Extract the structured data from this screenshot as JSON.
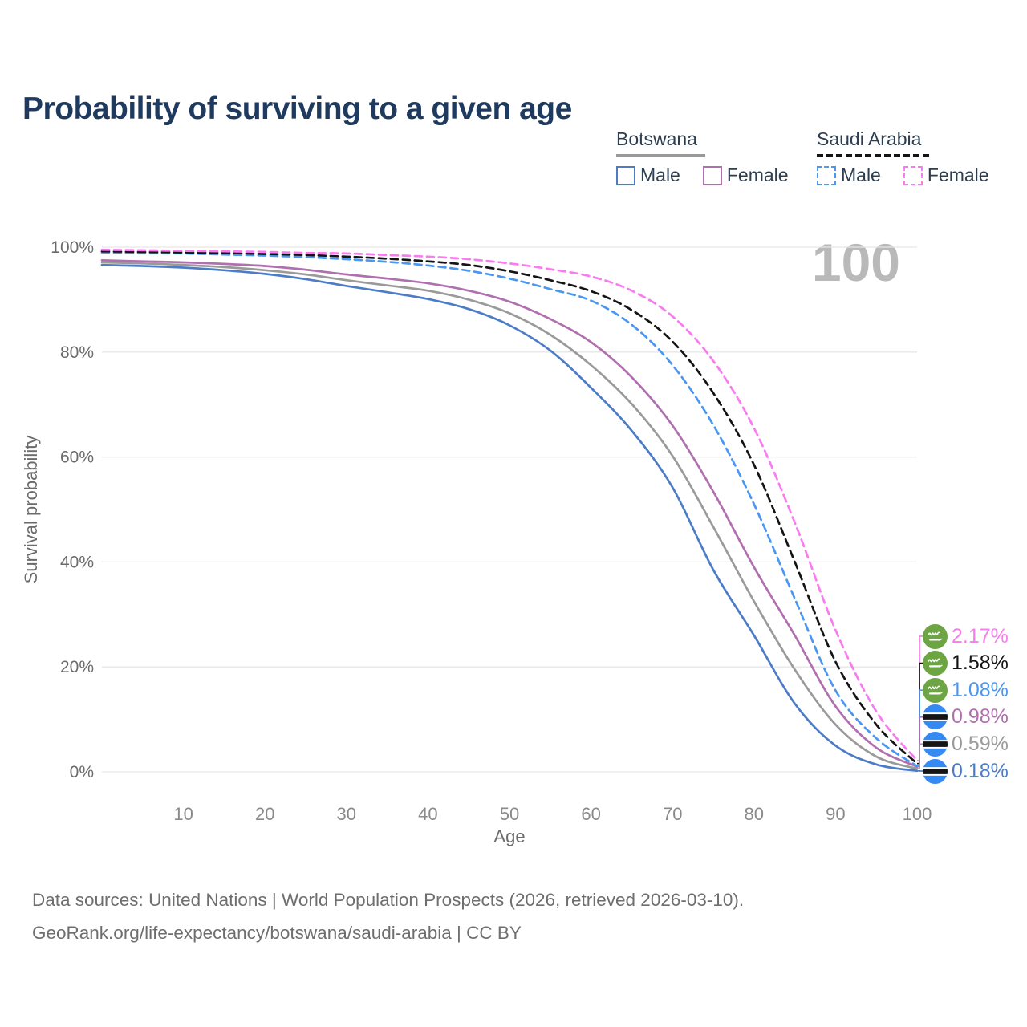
{
  "title": "Probability of surviving to a given age",
  "watermark": "100",
  "legend": {
    "groups": [
      {
        "name": "Botswana",
        "line_style": "solid",
        "underline_color": "#9a9a9a",
        "items": [
          {
            "label": "Male",
            "color": "#4d7cc7"
          },
          {
            "label": "Female",
            "color": "#b06fae"
          }
        ]
      },
      {
        "name": "Saudi Arabia",
        "line_style": "dashed",
        "underline_color": "#141414",
        "items": [
          {
            "label": "Male",
            "color": "#4a97f2"
          },
          {
            "label": "Female",
            "color": "#f87bf0"
          }
        ]
      }
    ]
  },
  "chart_data": {
    "type": "line",
    "title": "Probability of surviving to a given age",
    "xlabel": "Age",
    "ylabel": "Survival probability",
    "xlim": [
      0,
      100
    ],
    "ylim": [
      0,
      100
    ],
    "grid": true,
    "legend_position": "top-right",
    "x_ticks": [
      {
        "value": 10,
        "label": "10"
      },
      {
        "value": 20,
        "label": "20"
      },
      {
        "value": 30,
        "label": "30"
      },
      {
        "value": 40,
        "label": "40"
      },
      {
        "value": 50,
        "label": "50"
      },
      {
        "value": 60,
        "label": "60"
      },
      {
        "value": 70,
        "label": "70"
      },
      {
        "value": 80,
        "label": "80"
      },
      {
        "value": 90,
        "label": "90"
      },
      {
        "value": 100,
        "label": "100"
      }
    ],
    "y_ticks": [
      {
        "value": 0,
        "label": "0%"
      },
      {
        "value": 20,
        "label": "20%"
      },
      {
        "value": 40,
        "label": "40%"
      },
      {
        "value": 60,
        "label": "60%"
      },
      {
        "value": 80,
        "label": "80%"
      },
      {
        "value": 100,
        "label": "100%"
      }
    ],
    "x": [
      0,
      5,
      10,
      15,
      20,
      25,
      30,
      35,
      40,
      45,
      50,
      55,
      60,
      65,
      70,
      75,
      80,
      85,
      90,
      95,
      100
    ],
    "series": [
      {
        "name": "Saudi Arabia Female",
        "country": "Saudi Arabia",
        "sex": "Female",
        "color": "#f87bf0",
        "dash": "dashed",
        "flag": "saudi-arabia",
        "end_label": "2.17%",
        "values": [
          99.5,
          99.4,
          99.3,
          99.2,
          99.1,
          98.9,
          98.8,
          98.5,
          98.2,
          97.7,
          96.9,
          95.8,
          94.4,
          91.7,
          86.8,
          78.3,
          65.5,
          47.5,
          27.0,
          11.5,
          2.17
        ]
      },
      {
        "name": "Saudi Arabia Both sexes",
        "country": "Saudi Arabia",
        "sex": "Both sexes",
        "color": "#141414",
        "dash": "dashed",
        "flag": "saudi-arabia",
        "end_label": "1.58%",
        "values": [
          99.2,
          99.1,
          99.0,
          98.9,
          98.7,
          98.5,
          98.2,
          97.8,
          97.3,
          96.6,
          95.4,
          93.7,
          91.6,
          88.0,
          82.0,
          72.2,
          58.5,
          40.0,
          21.0,
          9.0,
          1.58
        ]
      },
      {
        "name": "Saudi Arabia Male",
        "country": "Saudi Arabia",
        "sex": "Male",
        "color": "#4a97f2",
        "dash": "dashed",
        "flag": "saudi-arabia",
        "end_label": "1.08%",
        "values": [
          99.0,
          98.9,
          98.8,
          98.6,
          98.4,
          98.1,
          97.7,
          97.2,
          96.5,
          95.5,
          94.0,
          92.0,
          89.8,
          85.2,
          77.5,
          66.1,
          51.0,
          33.0,
          15.5,
          6.4,
          1.08
        ]
      },
      {
        "name": "Botswana Female",
        "country": "Botswana",
        "sex": "Female",
        "color": "#b06fae",
        "dash": "solid",
        "flag": "botswana",
        "end_label": "0.98%",
        "values": [
          97.5,
          97.3,
          97.1,
          96.8,
          96.4,
          95.7,
          94.8,
          94.0,
          93.1,
          91.7,
          89.6,
          86.3,
          81.9,
          75.2,
          66.0,
          53.4,
          39.0,
          26.0,
          12.5,
          4.6,
          0.98
        ]
      },
      {
        "name": "Botswana Both sexes",
        "country": "Botswana",
        "sex": "Both sexes",
        "color": "#9a9a9a",
        "dash": "solid",
        "flag": "botswana",
        "end_label": "0.59%",
        "values": [
          97.1,
          96.9,
          96.6,
          96.2,
          95.6,
          94.8,
          93.7,
          92.7,
          91.7,
          90.0,
          87.4,
          83.3,
          77.5,
          70.1,
          60.2,
          46.7,
          32.5,
          19.5,
          9.0,
          2.9,
          0.59
        ]
      },
      {
        "name": "Botswana Male",
        "country": "Botswana",
        "sex": "Male",
        "color": "#4d7cc7",
        "dash": "solid",
        "flag": "botswana",
        "end_label": "0.18%",
        "values": [
          96.6,
          96.4,
          96.1,
          95.6,
          94.9,
          93.9,
          92.6,
          91.4,
          90.1,
          88.2,
          85.1,
          80.3,
          73.2,
          65.0,
          54.2,
          38.5,
          26.0,
          13.0,
          5.0,
          1.4,
          0.18
        ]
      }
    ]
  },
  "footer": {
    "line1": "Data sources: United Nations | World Population Prospects (2026, retrieved 2026-03-10).",
    "line2": "GeoRank.org/life-expectancy/botswana/saudi-arabia | CC BY"
  }
}
